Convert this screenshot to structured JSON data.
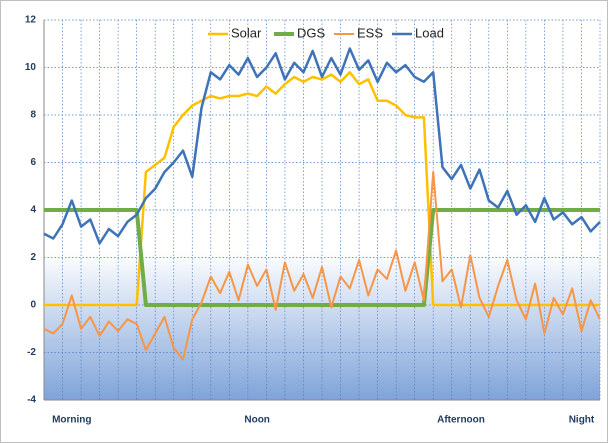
{
  "chart_data": {
    "type": "line",
    "categories": [
      null,
      null,
      null,
      "Morning",
      null,
      null,
      null,
      null,
      null,
      null,
      null,
      null,
      null,
      null,
      null,
      null,
      null,
      null,
      null,
      null,
      null,
      null,
      null,
      "Noon",
      null,
      null,
      null,
      null,
      null,
      null,
      null,
      null,
      null,
      null,
      null,
      null,
      null,
      null,
      null,
      null,
      null,
      null,
      null,
      null,
      null,
      "Afternoon",
      null,
      null,
      null,
      null,
      null,
      null,
      null,
      null,
      null,
      null,
      null,
      null,
      "Night",
      null,
      null
    ],
    "series": [
      {
        "name": "Solar",
        "color": "#ffc000",
        "width": 2.5,
        "values": [
          0,
          0,
          0,
          0,
          0,
          0,
          0,
          0,
          0,
          0,
          0,
          5.6,
          5.9,
          6.2,
          7.5,
          8.0,
          8.4,
          8.6,
          8.8,
          8.7,
          8.8,
          8.8,
          8.9,
          8.8,
          9.2,
          8.9,
          9.3,
          9.6,
          9.4,
          9.6,
          9.5,
          9.7,
          9.4,
          9.8,
          9.3,
          9.5,
          8.6,
          8.6,
          8.4,
          8.0,
          7.9,
          7.9,
          0,
          0,
          0,
          0,
          0,
          0,
          0,
          0,
          0,
          0,
          0,
          0,
          0,
          0,
          0,
          0,
          0,
          0,
          0
        ]
      },
      {
        "name": "DGS",
        "color": "#70ad47",
        "width": 4,
        "values": [
          4,
          4,
          4,
          4,
          4,
          4,
          4,
          4,
          4,
          4,
          4,
          0,
          0,
          0,
          0,
          0,
          0,
          0,
          0,
          0,
          0,
          0,
          0,
          0,
          0,
          0,
          0,
          0,
          0,
          0,
          0,
          0,
          0,
          0,
          0,
          0,
          0,
          0,
          0,
          0,
          0,
          0,
          4,
          4,
          4,
          4,
          4,
          4,
          4,
          4,
          4,
          4,
          4,
          4,
          4,
          4,
          4,
          4,
          4,
          4,
          4
        ]
      },
      {
        "name": "ESS",
        "color": "#f79646",
        "width": 2,
        "values": [
          -1,
          -1.2,
          -0.8,
          0.4,
          -1,
          -0.5,
          -1.3,
          -0.7,
          -1.1,
          -0.6,
          -0.8,
          -1.9,
          -1.2,
          -0.5,
          -1.8,
          -2.3,
          -0.6,
          0.1,
          1.2,
          0.5,
          1.4,
          0.2,
          1.7,
          0.8,
          1.5,
          -0.2,
          1.8,
          0.6,
          1.3,
          0.3,
          1.6,
          -0.1,
          1.2,
          0.7,
          1.9,
          0.4,
          1.5,
          1.1,
          2.3,
          0.6,
          1.8,
          0.2,
          5.6,
          1.0,
          1.5,
          -0.1,
          2.1,
          0.3,
          -0.5,
          0.8,
          1.9,
          0.2,
          -0.6,
          0.9,
          -1.2,
          0.3,
          -0.4,
          0.7,
          -1.1,
          0.2,
          -0.6
        ]
      },
      {
        "name": "Load",
        "color": "#3f73b8",
        "width": 2.5,
        "values": [
          3.0,
          2.8,
          3.4,
          4.4,
          3.3,
          3.6,
          2.6,
          3.2,
          2.9,
          3.5,
          3.8,
          4.5,
          4.9,
          5.6,
          6.0,
          6.5,
          5.4,
          8.3,
          9.8,
          9.5,
          10.1,
          9.7,
          10.4,
          9.6,
          10.0,
          10.6,
          9.5,
          10.2,
          9.8,
          10.7,
          9.6,
          10.4,
          9.7,
          10.8,
          9.9,
          10.3,
          9.4,
          10.2,
          9.8,
          10.1,
          9.6,
          9.4,
          9.8,
          5.8,
          5.3,
          5.9,
          4.9,
          5.7,
          4.4,
          4.1,
          4.8,
          3.8,
          4.2,
          3.5,
          4.5,
          3.6,
          3.9,
          3.4,
          3.7,
          3.1,
          3.5
        ]
      }
    ],
    "ylim": [
      -4,
      12
    ],
    "yticks": [
      -4,
      -2,
      0,
      2,
      4,
      6,
      8,
      10,
      12
    ],
    "grid": true,
    "legend": "top"
  }
}
